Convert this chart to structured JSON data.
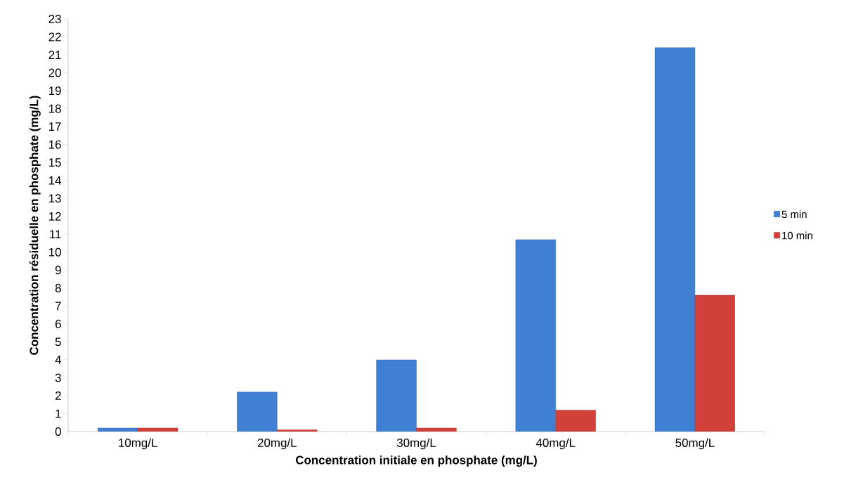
{
  "chart_data": {
    "type": "bar",
    "xlabel": "Concentration initiale en phosphate  (mg/L)",
    "ylabel": "Concentration résiduelle en phosphate  (mg/L)",
    "categories": [
      "10mg/L",
      "20mg/L",
      "30mg/L",
      "40mg/L",
      "50mg/L"
    ],
    "series": [
      {
        "name": "5 min",
        "color": "#3f7fd4",
        "values": [
          0.2,
          2.2,
          4.0,
          10.7,
          21.4
        ]
      },
      {
        "name": "10 min",
        "color": "#d2403c",
        "values": [
          0.2,
          0.1,
          0.2,
          1.2,
          7.6
        ]
      }
    ],
    "ylim": [
      0,
      23
    ],
    "yticks": [
      0,
      1,
      2,
      3,
      4,
      5,
      6,
      7,
      8,
      9,
      10,
      11,
      12,
      13,
      14,
      15,
      16,
      17,
      18,
      19,
      20,
      21,
      22,
      23
    ],
    "grid": false,
    "legend": "right"
  }
}
